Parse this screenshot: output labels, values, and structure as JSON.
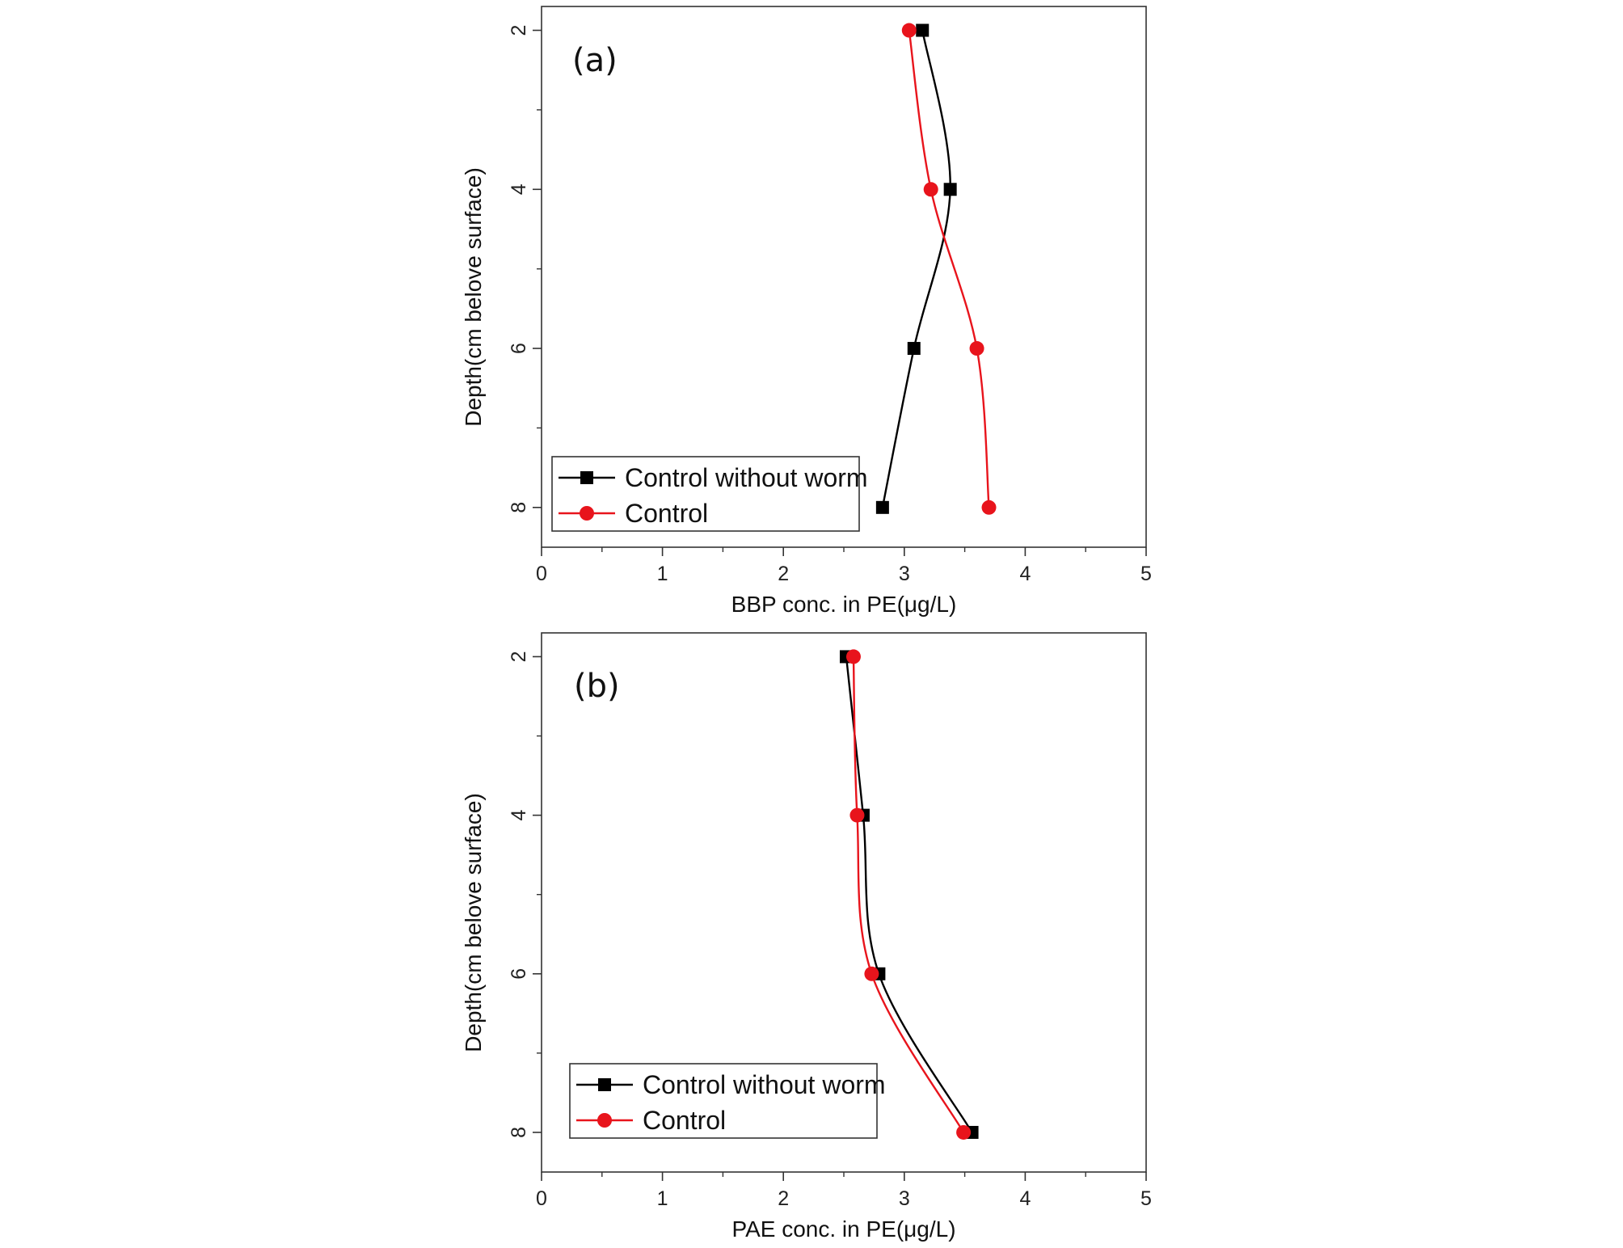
{
  "chart_data": [
    {
      "type": "line",
      "panel_label": "(a)",
      "title": "",
      "xlabel": "BBP conc. in PE(μg/L)",
      "ylabel": "Depth(cm belove surface)",
      "xlim": [
        0,
        5
      ],
      "ylim": [
        1.7,
        8.5
      ],
      "y_inverted": true,
      "x_ticks": [
        "0",
        "1",
        "2",
        "3",
        "4",
        "5"
      ],
      "y_ticks": [
        "2",
        "4",
        "6",
        "8"
      ],
      "legend_position": "bottom-left",
      "series": [
        {
          "name": "Control without worm",
          "color": "#000000",
          "marker": "square",
          "x": [
            3.15,
            3.38,
            3.08,
            2.82
          ],
          "y": [
            2,
            4,
            6,
            8
          ]
        },
        {
          "name": "Control",
          "color": "#e8141c",
          "marker": "circle",
          "x": [
            3.04,
            3.22,
            3.6,
            3.7
          ],
          "y": [
            2,
            4,
            6,
            8
          ]
        }
      ]
    },
    {
      "type": "line",
      "panel_label": "(b)",
      "title": "",
      "xlabel": "PAE conc. in PE(μg/L)",
      "ylabel": "Depth(cm belove surface)",
      "xlim": [
        0,
        5
      ],
      "ylim": [
        1.7,
        8.5
      ],
      "y_inverted": true,
      "x_ticks": [
        "0",
        "1",
        "2",
        "3",
        "4",
        "5"
      ],
      "y_ticks": [
        "2",
        "4",
        "6",
        "8"
      ],
      "legend_position": "bottom-left",
      "series": [
        {
          "name": "Control without worm",
          "color": "#000000",
          "marker": "square",
          "x": [
            2.52,
            2.66,
            2.79,
            3.56
          ],
          "y": [
            2,
            4,
            6,
            8
          ]
        },
        {
          "name": "Control",
          "color": "#e8141c",
          "marker": "circle",
          "x": [
            2.58,
            2.61,
            2.73,
            3.49
          ],
          "y": [
            2,
            4,
            6,
            8
          ]
        }
      ]
    }
  ]
}
